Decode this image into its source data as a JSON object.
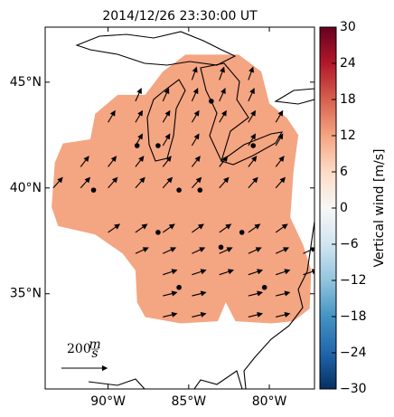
{
  "chart_data": {
    "type": "quiver",
    "title": "2014/12/26 23:30:00 UT",
    "xlim": [
      -93.9,
      -77.2
    ],
    "ylim": [
      30.5,
      47.6
    ],
    "xticks": [
      {
        "value": -90,
        "label": "90°W"
      },
      {
        "value": -85,
        "label": "85°W"
      },
      {
        "value": -80,
        "label": "80°W"
      }
    ],
    "yticks": [
      {
        "value": 35,
        "label": "35°N"
      },
      {
        "value": 40,
        "label": "40°N"
      },
      {
        "value": 45,
        "label": "45°N"
      }
    ],
    "field": {
      "value": 12,
      "outline_lon": [
        -85.2,
        -81.9,
        -80.5,
        -80.0,
        -78.9,
        -78.2,
        -78.5,
        -78.7,
        -77.9,
        -77.4,
        -77.5,
        -78.5,
        -79.9,
        -82.1,
        -82.7,
        -83.2,
        -85.5,
        -87.7,
        -88.2,
        -88.3,
        -89.1,
        -90.8,
        -93.1,
        -93.5,
        -93.3,
        -92.8,
        -91.1,
        -90.8,
        -89.4,
        -87.7,
        -86.6
      ],
      "outline_lat": [
        46.3,
        46.3,
        45.5,
        44.0,
        43.3,
        42.5,
        40.8,
        38.6,
        37.3,
        36.1,
        34.3,
        33.7,
        33.6,
        33.7,
        34.6,
        33.7,
        33.6,
        33.9,
        34.6,
        36.1,
        36.9,
        37.8,
        38.2,
        39.1,
        41.2,
        42.1,
        42.3,
        43.5,
        44.4,
        44.4,
        45.5
      ]
    },
    "vectors": [
      {
        "lat": 45.1,
        "lon": [
          -84.8,
          -83.1,
          -81.3
        ],
        "u": [
          20,
          20,
          20
        ],
        "v": [
          55,
          55,
          55
        ]
      },
      {
        "lat": 44.1,
        "lon": [
          -88.3,
          -86.6,
          -84.8,
          -83.1,
          -81.3
        ],
        "u": [
          25,
          25,
          25,
          25,
          25
        ],
        "v": [
          55,
          55,
          55,
          55,
          55
        ]
      },
      {
        "lat": 43.1,
        "lon": [
          -90.0,
          -88.3,
          -86.6,
          -84.8,
          -83.1,
          -81.3,
          -79.6
        ],
        "u": [
          30,
          30,
          30,
          30,
          30,
          30,
          30
        ],
        "v": [
          50,
          50,
          50,
          50,
          50,
          50,
          50
        ]
      },
      {
        "lat": 42.0,
        "lon": [
          -88.3,
          -86.6,
          -84.8,
          -81.3,
          -79.6
        ],
        "u": [
          30,
          30,
          30,
          30,
          30
        ],
        "v": [
          50,
          50,
          50,
          50,
          50
        ]
      },
      {
        "lat": 41.0,
        "lon": [
          -91.7,
          -90.0,
          -88.3,
          -86.6,
          -84.8,
          -83.1,
          -81.3,
          -79.6
        ],
        "u": [
          35,
          35,
          35,
          35,
          35,
          35,
          35,
          35
        ],
        "v": [
          45,
          45,
          45,
          45,
          45,
          45,
          45,
          45
        ]
      },
      {
        "lat": 40.0,
        "lon": [
          -93.4,
          -91.7,
          -90.0,
          -88.3,
          -86.6,
          -84.8,
          -83.1,
          -81.3,
          -79.6
        ],
        "u": [
          40,
          40,
          40,
          40,
          40,
          40,
          40,
          40,
          40
        ],
        "v": [
          45,
          45,
          45,
          45,
          45,
          45,
          45,
          45,
          45
        ]
      },
      {
        "lat": 37.9,
        "lon": [
          -90.0,
          -88.3,
          -86.6,
          -84.8,
          -83.1,
          -81.3,
          -79.6
        ],
        "u": [
          50,
          50,
          50,
          50,
          50,
          50,
          50
        ],
        "v": [
          35,
          35,
          35,
          35,
          35,
          35,
          35
        ]
      },
      {
        "lat": 36.9,
        "lon": [
          -88.3,
          -86.6,
          -84.8,
          -83.1,
          -81.3,
          -79.6,
          -77.9
        ],
        "u": [
          55,
          55,
          55,
          55,
          55,
          55,
          55
        ],
        "v": [
          25,
          25,
          25,
          25,
          25,
          25,
          25
        ]
      },
      {
        "lat": 35.9,
        "lon": [
          -86.6,
          -84.8,
          -83.1,
          -81.3,
          -79.6,
          -77.9
        ],
        "u": [
          60,
          60,
          60,
          60,
          60,
          60
        ],
        "v": [
          20,
          20,
          20,
          20,
          20,
          20
        ]
      },
      {
        "lat": 34.9,
        "lon": [
          -86.6,
          -84.8,
          -81.3,
          -79.6
        ],
        "u": [
          60,
          60,
          60,
          60
        ],
        "v": [
          15,
          15,
          15,
          15
        ]
      },
      {
        "lat": 33.9,
        "lon": [
          -86.6,
          -84.8,
          -81.3,
          -79.6
        ],
        "u": [
          60,
          60,
          60,
          60
        ],
        "v": [
          15,
          15,
          15,
          15
        ]
      }
    ],
    "stations": {
      "lon": [
        -88.2,
        -86.9,
        -83.6,
        -81.0,
        -90.9,
        -85.6,
        -84.3,
        -86.9,
        -83.0,
        -81.7,
        -85.6,
        -80.3
      ],
      "lat": [
        42.0,
        42.0,
        44.1,
        42.0,
        39.9,
        39.9,
        39.9,
        37.9,
        37.2,
        37.9,
        35.3,
        35.3
      ]
    },
    "key": {
      "speed": 200,
      "unit_numerator": "m",
      "unit_denominator": "s"
    },
    "colorbar": {
      "label": "Vertical wind [m/s]",
      "clim": [
        -30,
        30
      ],
      "colormap": [
        "#053061",
        "#2166ac",
        "#4393c3",
        "#92c5de",
        "#d1e5f0",
        "#f7f7f7",
        "#fddbc7",
        "#f4a582",
        "#d6604d",
        "#b2182b",
        "#67001f"
      ],
      "ticks": [
        {
          "value": -30,
          "label": "−30"
        },
        {
          "value": -24,
          "label": "−24"
        },
        {
          "value": -18,
          "label": "−18"
        },
        {
          "value": -12,
          "label": "−12"
        },
        {
          "value": -6,
          "label": "−6"
        },
        0,
        6,
        12,
        18,
        24,
        30
      ]
    }
  }
}
